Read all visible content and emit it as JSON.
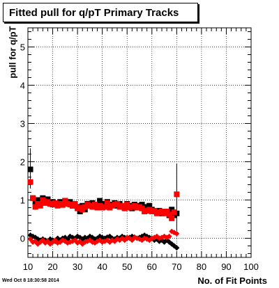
{
  "title": "Fitted pull for q/pT Primary Tracks",
  "datestamp": "Wed Oct  8 18:30:58 2014",
  "chart_data": {
    "type": "scatter",
    "xlabel": "No. of Fit Points",
    "ylabel": "pull for q/pT",
    "xlim": [
      10,
      100
    ],
    "ylim": [
      -0.5,
      5.5
    ],
    "xticks": [
      10,
      20,
      30,
      40,
      50,
      60,
      70,
      80,
      90,
      100
    ],
    "yticks": [
      0,
      1,
      2,
      3,
      4,
      5
    ],
    "grid": true,
    "series": [
      {
        "color": "#000000",
        "marker": "square",
        "x": [
          11,
          12,
          13,
          14,
          15,
          16,
          17,
          18,
          19,
          20,
          21,
          22,
          23,
          24,
          25,
          26,
          27,
          28,
          29,
          30,
          31,
          32,
          33,
          34,
          35,
          36,
          37,
          38,
          39,
          40,
          41,
          42,
          43,
          44,
          45,
          46,
          47,
          48,
          49,
          50,
          51,
          52,
          53,
          54,
          55,
          56,
          57,
          58,
          59,
          60,
          61,
          62,
          63,
          64,
          65,
          66,
          67,
          68,
          69,
          70
        ],
        "y": [
          1.8,
          1.05,
          0.95,
          1.0,
          0.95,
          1.05,
          1.0,
          1.02,
          0.92,
          0.95,
          0.9,
          0.88,
          0.95,
          0.9,
          0.98,
          0.92,
          0.95,
          0.85,
          0.9,
          0.82,
          0.7,
          0.85,
          0.75,
          0.9,
          0.85,
          0.92,
          0.88,
          0.85,
          0.98,
          0.8,
          0.9,
          0.95,
          0.85,
          0.88,
          0.92,
          0.85,
          0.9,
          0.82,
          0.8,
          0.9,
          0.85,
          0.78,
          0.88,
          0.85,
          0.8,
          0.88,
          0.82,
          0.72,
          0.85,
          0.75,
          0.7,
          0.68,
          0.72,
          0.65,
          0.7,
          0.68,
          0.6,
          0.75,
          0.6,
          0.65
        ]
      },
      {
        "color": "#ff0000",
        "marker": "square",
        "x": [
          11,
          12,
          13,
          14,
          15,
          16,
          17,
          18,
          19,
          20,
          21,
          22,
          23,
          24,
          25,
          26,
          27,
          28,
          29,
          30,
          31,
          32,
          33,
          34,
          35,
          36,
          37,
          38,
          39,
          40,
          41,
          42,
          43,
          44,
          45,
          46,
          47,
          48,
          49,
          50,
          51,
          52,
          53,
          54,
          55,
          56,
          57,
          58,
          59,
          60,
          61,
          62,
          63,
          64,
          65,
          66,
          67,
          68,
          69,
          70
        ],
        "y": [
          1.47,
          1.05,
          0.82,
          0.9,
          0.85,
          1.0,
          0.92,
          0.95,
          0.9,
          0.88,
          0.92,
          0.85,
          0.9,
          0.87,
          0.98,
          0.9,
          0.88,
          0.85,
          0.9,
          0.78,
          0.8,
          0.75,
          0.82,
          0.88,
          0.85,
          0.82,
          0.88,
          0.8,
          0.85,
          0.8,
          0.82,
          0.92,
          0.8,
          0.85,
          0.88,
          0.9,
          0.82,
          0.85,
          0.78,
          0.88,
          0.8,
          0.82,
          0.85,
          0.8,
          0.82,
          0.78,
          0.7,
          0.72,
          0.75,
          0.7,
          0.72,
          0.65,
          0.68,
          0.7,
          0.65,
          0.7,
          0.62,
          0.52,
          0.68,
          1.15
        ]
      },
      {
        "color": "#000000",
        "marker": "diamond",
        "x": [
          11,
          12,
          13,
          14,
          15,
          16,
          17,
          18,
          19,
          20,
          21,
          22,
          23,
          24,
          25,
          26,
          27,
          28,
          29,
          30,
          31,
          32,
          33,
          34,
          35,
          36,
          37,
          38,
          39,
          40,
          41,
          42,
          43,
          44,
          45,
          46,
          47,
          48,
          49,
          50,
          51,
          52,
          53,
          54,
          55,
          56,
          57,
          58,
          59,
          60,
          61,
          62,
          63,
          64,
          65,
          66,
          67,
          68,
          69,
          70
        ],
        "y": [
          0.08,
          0.05,
          0.02,
          -0.02,
          -0.05,
          -0.02,
          -0.05,
          -0.08,
          -0.02,
          -0.05,
          -0.08,
          0.0,
          -0.05,
          0.0,
          0.02,
          -0.03,
          0.05,
          0.02,
          0.0,
          0.05,
          0.02,
          -0.02,
          0.02,
          0.0,
          0.05,
          0.02,
          -0.02,
          0.0,
          0.05,
          0.02,
          0.0,
          0.03,
          0.05,
          0.0,
          -0.02,
          0.02,
          0.0,
          0.05,
          0.02,
          0.0,
          0.02,
          0.05,
          0.03,
          0.0,
          0.02,
          0.05,
          0.08,
          0.05,
          0.02,
          0.0,
          -0.05,
          -0.02,
          -0.08,
          -0.05,
          -0.1,
          -0.05,
          -0.1,
          -0.15,
          -0.2,
          -0.25
        ]
      },
      {
        "color": "#ff0000",
        "marker": "diamond",
        "x": [
          11,
          12,
          13,
          14,
          15,
          16,
          17,
          18,
          19,
          20,
          21,
          22,
          23,
          24,
          25,
          26,
          27,
          28,
          29,
          30,
          31,
          32,
          33,
          34,
          35,
          36,
          37,
          38,
          39,
          40,
          41,
          42,
          43,
          44,
          45,
          46,
          47,
          48,
          49,
          50,
          51,
          52,
          53,
          54,
          55,
          56,
          57,
          58,
          59,
          60,
          61,
          62,
          63,
          64,
          65,
          66,
          67,
          68,
          69,
          70
        ],
        "y": [
          -0.02,
          -0.1,
          -0.08,
          -0.15,
          -0.1,
          -0.05,
          -0.12,
          -0.08,
          -0.15,
          -0.1,
          -0.05,
          -0.12,
          -0.1,
          -0.05,
          -0.08,
          -0.12,
          -0.1,
          -0.08,
          -0.05,
          -0.12,
          -0.08,
          -0.15,
          -0.1,
          -0.08,
          -0.05,
          -0.1,
          -0.12,
          -0.08,
          -0.05,
          -0.1,
          -0.08,
          -0.05,
          -0.1,
          -0.05,
          -0.08,
          -0.02,
          -0.05,
          0.0,
          -0.05,
          0.02,
          0.0,
          -0.05,
          0.02,
          0.0,
          -0.02,
          -0.05,
          0.0,
          -0.02,
          -0.05,
          0.0,
          0.02,
          0.05,
          0.0,
          0.02,
          0.05,
          0.02,
          0.05,
          0.18,
          0.15,
          0.12
        ]
      }
    ],
    "error_bars": [
      {
        "x": 11,
        "low": 1.3,
        "high": 2.35
      },
      {
        "x": 70,
        "low": 0.2,
        "high": 1.95
      }
    ]
  }
}
